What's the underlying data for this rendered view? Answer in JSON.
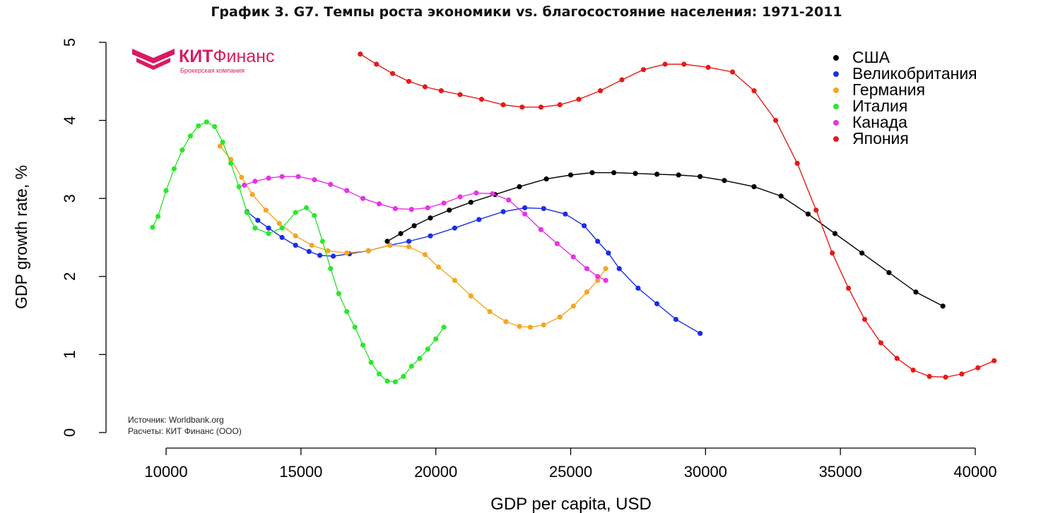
{
  "logo": {
    "name_bold": "КИТ",
    "name_rest": "Финанс",
    "tagline": "Брокерская компания",
    "color": "#d81b60"
  },
  "notes": {
    "source": "Источник: Worldbank.org",
    "calc": "Расчеты: КИТ Финанс (ООО)"
  },
  "chart_data": {
    "type": "line",
    "title": "График 3. G7. Темпы роста экономики vs. благосостояние населения: 1971-2011",
    "xlabel": "GDP per capita, USD",
    "ylabel": "GDP growth rate, %",
    "xlim": [
      9500,
      41000
    ],
    "ylim": [
      0,
      5
    ],
    "xticks": [
      10000,
      15000,
      20000,
      25000,
      30000,
      35000,
      40000
    ],
    "yticks": [
      0,
      1,
      2,
      3,
      4,
      5
    ],
    "grid": false,
    "legend": "top-right",
    "series": [
      {
        "name": "США",
        "color": "#000000",
        "x": [
          18200,
          18700,
          19200,
          19800,
          20500,
          21300,
          22200,
          23100,
          24100,
          25000,
          25800,
          26600,
          27400,
          28200,
          29000,
          29800,
          30700,
          31800,
          32800,
          33800,
          34800,
          35800,
          36800,
          37800,
          38800
        ],
        "y": [
          2.45,
          2.55,
          2.65,
          2.75,
          2.85,
          2.95,
          3.05,
          3.15,
          3.25,
          3.3,
          3.33,
          3.33,
          3.32,
          3.31,
          3.3,
          3.28,
          3.23,
          3.15,
          3.03,
          2.8,
          2.55,
          2.3,
          2.05,
          1.8,
          1.62
        ]
      },
      {
        "name": "Великобритания",
        "color": "#1a2ee6",
        "x": [
          13000,
          13400,
          13800,
          14300,
          14800,
          15300,
          15700,
          16200,
          16800,
          17500,
          18300,
          19000,
          19800,
          20700,
          21600,
          22500,
          23300,
          24000,
          24800,
          25500,
          26000,
          26400,
          26800,
          27500,
          28200,
          28900,
          29800
        ],
        "y": [
          2.83,
          2.72,
          2.62,
          2.5,
          2.4,
          2.32,
          2.27,
          2.26,
          2.29,
          2.33,
          2.4,
          2.45,
          2.52,
          2.62,
          2.73,
          2.83,
          2.88,
          2.87,
          2.8,
          2.65,
          2.45,
          2.3,
          2.1,
          1.85,
          1.65,
          1.45,
          1.27
        ]
      },
      {
        "name": "Германия",
        "color": "#f5a623",
        "x": [
          12000,
          12400,
          12800,
          13200,
          13700,
          14200,
          14800,
          15400,
          16000,
          16700,
          17500,
          18300,
          19000,
          19600,
          20100,
          20700,
          21300,
          22000,
          22600,
          23100,
          23500,
          24000,
          24600,
          25100,
          25600,
          26000,
          26300
        ],
        "y": [
          3.67,
          3.5,
          3.27,
          3.05,
          2.85,
          2.68,
          2.52,
          2.4,
          2.33,
          2.3,
          2.33,
          2.4,
          2.38,
          2.28,
          2.12,
          1.95,
          1.75,
          1.55,
          1.42,
          1.36,
          1.35,
          1.38,
          1.48,
          1.62,
          1.8,
          1.95,
          2.1
        ]
      },
      {
        "name": "Италия",
        "color": "#2ee62e",
        "x": [
          9500,
          9700,
          10000,
          10300,
          10600,
          10900,
          11200,
          11500,
          11800,
          12100,
          12400,
          12700,
          13000,
          13300,
          13800,
          14300,
          14800,
          15200,
          15500,
          15800,
          16100,
          16400,
          16700,
          17000,
          17300,
          17600,
          17900,
          18200,
          18500,
          18800,
          19100,
          19400,
          19700,
          20000,
          20300
        ],
        "y": [
          2.63,
          2.77,
          3.1,
          3.38,
          3.62,
          3.8,
          3.93,
          3.98,
          3.92,
          3.72,
          3.45,
          3.15,
          2.82,
          2.62,
          2.55,
          2.62,
          2.82,
          2.88,
          2.78,
          2.45,
          2.1,
          1.78,
          1.55,
          1.35,
          1.12,
          0.9,
          0.75,
          0.66,
          0.65,
          0.72,
          0.85,
          0.95,
          1.07,
          1.2,
          1.35
        ]
      },
      {
        "name": "Канада",
        "color": "#e633e6",
        "x": [
          12900,
          13300,
          13800,
          14300,
          14900,
          15500,
          16100,
          16700,
          17300,
          17900,
          18500,
          19100,
          19700,
          20300,
          20900,
          21500,
          22100,
          22700,
          23300,
          23900,
          24500,
          25100,
          25600,
          26000,
          26300
        ],
        "y": [
          3.17,
          3.22,
          3.26,
          3.28,
          3.28,
          3.24,
          3.18,
          3.1,
          3.0,
          2.93,
          2.87,
          2.86,
          2.88,
          2.94,
          3.02,
          3.07,
          3.06,
          2.98,
          2.8,
          2.6,
          2.42,
          2.25,
          2.1,
          2.0,
          1.95
        ]
      },
      {
        "name": "Япония",
        "color": "#e61a1a",
        "x": [
          17200,
          17800,
          18400,
          19000,
          19600,
          20200,
          20900,
          21700,
          22500,
          23200,
          23900,
          24600,
          25300,
          26100,
          26900,
          27700,
          28500,
          29200,
          30100,
          31000,
          31800,
          32600,
          33400,
          34100,
          34700,
          35300,
          35900,
          36500,
          37100,
          37700,
          38300,
          38900,
          39500,
          40100,
          40700
        ],
        "y": [
          4.85,
          4.72,
          4.6,
          4.5,
          4.43,
          4.38,
          4.33,
          4.27,
          4.2,
          4.17,
          4.17,
          4.2,
          4.27,
          4.38,
          4.52,
          4.65,
          4.72,
          4.72,
          4.68,
          4.62,
          4.38,
          4.0,
          3.45,
          2.85,
          2.3,
          1.85,
          1.45,
          1.15,
          0.95,
          0.8,
          0.72,
          0.71,
          0.75,
          0.83,
          0.92
        ]
      }
    ]
  }
}
